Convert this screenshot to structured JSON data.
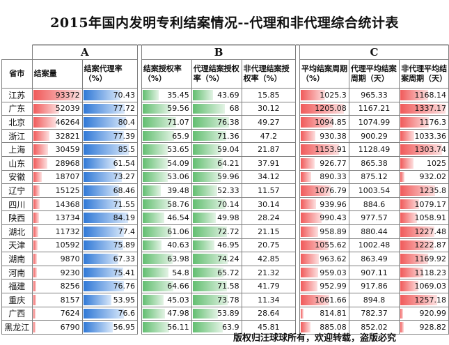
{
  "title": "2015年国内发明专利结案情况--代理和非代理综合统计表",
  "groups": [
    "A",
    "B",
    "C"
  ],
  "headers": {
    "city": "省市",
    "jiean": "结案量",
    "dailv": "结案代理率（%）",
    "shouquan": "结案授权率（%）",
    "dl_sq": "代理结案授权率（%）",
    "fdl_sq": "非代理结案授权率（%）",
    "zhouqi": "平均结案周期（%）",
    "dl_zq": "代理平均结案周期（天）",
    "fdl_zq": "非代理平均结案周期（天）"
  },
  "rows": [
    {
      "city": "江苏",
      "jiean": "93372",
      "dailv": "70.43",
      "shouquan": "35.45",
      "dl_sq": "43.69",
      "fdl_sq": "15.85",
      "zhouqi": "1025.3",
      "dl_zq": "965.33",
      "fdl_zq": "1168.14"
    },
    {
      "city": "广东",
      "jiean": "52039",
      "dailv": "77.72",
      "shouquan": "59.56",
      "dl_sq": "68",
      "fdl_sq": "30.12",
      "zhouqi": "1205.08",
      "dl_zq": "1167.21",
      "fdl_zq": "1337.17"
    },
    {
      "city": "北京",
      "jiean": "46264",
      "dailv": "80.4",
      "shouquan": "71.07",
      "dl_sq": "76.38",
      "fdl_sq": "49.27",
      "zhouqi": "1094.85",
      "dl_zq": "1074.99",
      "fdl_zq": "1176.3"
    },
    {
      "city": "浙江",
      "jiean": "32821",
      "dailv": "77.39",
      "shouquan": "65.9",
      "dl_sq": "71.36",
      "fdl_sq": "47.2",
      "zhouqi": "930.38",
      "dl_zq": "900.29",
      "fdl_zq": "1033.36"
    },
    {
      "city": "上海",
      "jiean": "30459",
      "dailv": "85.5",
      "shouquan": "53.65",
      "dl_sq": "59.04",
      "fdl_sq": "21.87",
      "zhouqi": "1153.91",
      "dl_zq": "1128.49",
      "fdl_zq": "1303.74"
    },
    {
      "city": "山东",
      "jiean": "28968",
      "dailv": "61.54",
      "shouquan": "54.09",
      "dl_sq": "64.21",
      "fdl_sq": "37.91",
      "zhouqi": "926.77",
      "dl_zq": "865.38",
      "fdl_zq": "1025"
    },
    {
      "city": "安徽",
      "jiean": "18707",
      "dailv": "73.27",
      "shouquan": "53.06",
      "dl_sq": "59.96",
      "fdl_sq": "34.12",
      "zhouqi": "890.33",
      "dl_zq": "875.12",
      "fdl_zq": "932.02"
    },
    {
      "city": "辽宁",
      "jiean": "15125",
      "dailv": "68.46",
      "shouquan": "39.48",
      "dl_sq": "52.33",
      "fdl_sq": "11.57",
      "zhouqi": "1076.79",
      "dl_zq": "1003.54",
      "fdl_zq": "1235.8"
    },
    {
      "city": "四川",
      "jiean": "14368",
      "dailv": "71.55",
      "shouquan": "58.76",
      "dl_sq": "70.14",
      "fdl_sq": "30.14",
      "zhouqi": "939.96",
      "dl_zq": "884.6",
      "fdl_zq": "1079.17"
    },
    {
      "city": "陕西",
      "jiean": "13734",
      "dailv": "84.19",
      "shouquan": "46.54",
      "dl_sq": "49.98",
      "fdl_sq": "28.24",
      "zhouqi": "990.43",
      "dl_zq": "977.57",
      "fdl_zq": "1058.91"
    },
    {
      "city": "湖北",
      "jiean": "11732",
      "dailv": "77.4",
      "shouquan": "61.06",
      "dl_sq": "72.72",
      "fdl_sq": "21.15",
      "zhouqi": "958.89",
      "dl_zq": "880.44",
      "fdl_zq": "1227.48"
    },
    {
      "city": "天津",
      "jiean": "10592",
      "dailv": "75.89",
      "shouquan": "40.63",
      "dl_sq": "46.95",
      "fdl_sq": "20.75",
      "zhouqi": "1055.62",
      "dl_zq": "1002.48",
      "fdl_zq": "1222.87"
    },
    {
      "city": "湖南",
      "jiean": "9870",
      "dailv": "67.33",
      "shouquan": "63.98",
      "dl_sq": "74.24",
      "fdl_sq": "42.85",
      "zhouqi": "963.62",
      "dl_zq": "863.49",
      "fdl_zq": "1169.92"
    },
    {
      "city": "河南",
      "jiean": "9230",
      "dailv": "75.41",
      "shouquan": "54.8",
      "dl_sq": "65.72",
      "fdl_sq": "21.32",
      "zhouqi": "959.03",
      "dl_zq": "907.11",
      "fdl_zq": "1118.23"
    },
    {
      "city": "福建",
      "jiean": "8256",
      "dailv": "76.76",
      "shouquan": "64.66",
      "dl_sq": "71.58",
      "fdl_sq": "41.79",
      "zhouqi": "952.99",
      "dl_zq": "917.86",
      "fdl_zq": "1069.03"
    },
    {
      "city": "重庆",
      "jiean": "8157",
      "dailv": "53.95",
      "shouquan": "45.03",
      "dl_sq": "73.78",
      "fdl_sq": "11.34",
      "zhouqi": "1061.66",
      "dl_zq": "894.8",
      "fdl_zq": "1257.18"
    },
    {
      "city": "广西",
      "jiean": "7624",
      "dailv": "76.6",
      "shouquan": "47.98",
      "dl_sq": "53.89",
      "fdl_sq": "28.64",
      "zhouqi": "814.81",
      "dl_zq": "782.37",
      "fdl_zq": "920.99"
    },
    {
      "city": "黑龙江",
      "jiean": "6790",
      "dailv": "56.95",
      "shouquan": "56.11",
      "dl_sq": "63.9",
      "fdl_sq": "45.81",
      "zhouqi": "885.08",
      "dl_zq": "852.02",
      "fdl_zq": "928.82"
    }
  ],
  "bar_colors": {
    "jiean": "#f05a5a",
    "dailv": "#2f78d6",
    "shouquan": "#62be70",
    "dl_sq": "#62be70",
    "zhouqi": "#f05a5a",
    "fdl_zq": "#f05a5a"
  },
  "footer": "版权归汪球球所有，欢迎转载，盗版必究"
}
